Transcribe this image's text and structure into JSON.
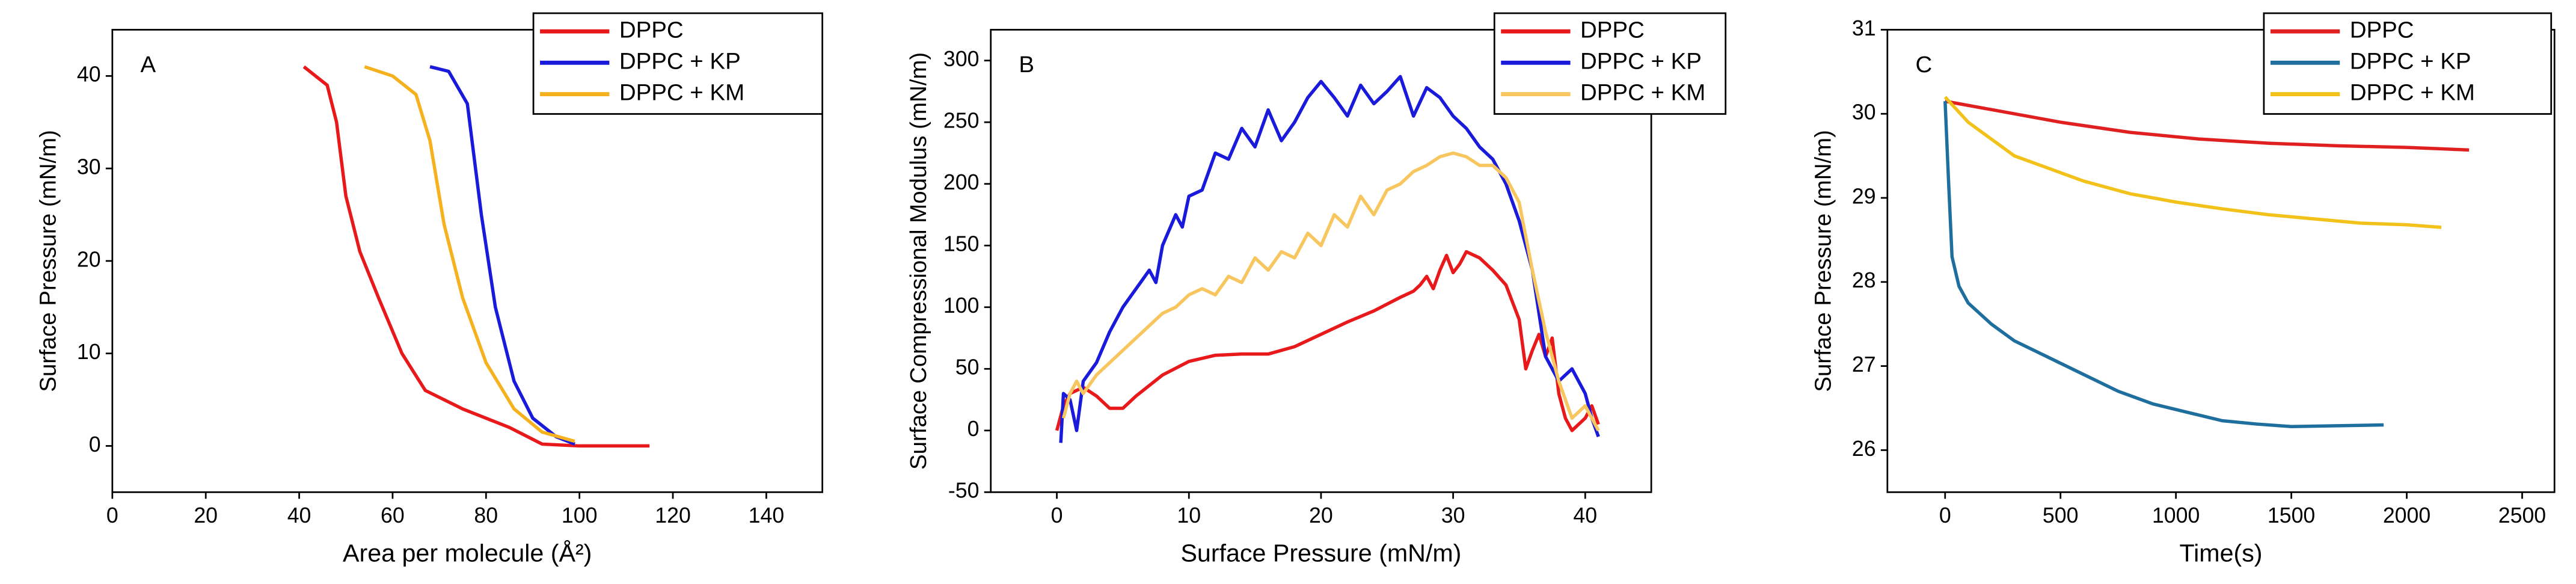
{
  "chart_data": [
    {
      "type": "line",
      "annotation": "A",
      "xlabel": "Area per molecule (Å²)",
      "ylabel": "Surface Pressure (mN/m)",
      "xlim": [
        0,
        152
      ],
      "xticks": [
        0,
        20,
        40,
        60,
        80,
        100,
        120,
        140
      ],
      "ylim": [
        -5,
        45
      ],
      "yticks": [
        0,
        10,
        20,
        30,
        40
      ],
      "legend": "upper right",
      "series": [
        {
          "name": "DPPC",
          "color": "#e8191b",
          "x": [
            41,
            46,
            48,
            50,
            53,
            57,
            62,
            67,
            75,
            85,
            92,
            100,
            115
          ],
          "values": [
            41,
            39,
            35,
            27,
            21,
            16,
            10,
            6,
            4,
            2,
            0.2,
            0,
            0
          ]
        },
        {
          "name": "DPPC + KP",
          "color": "#1a1adb",
          "x": [
            68,
            72,
            76,
            79,
            82,
            86,
            90,
            95,
            99
          ],
          "values": [
            41,
            40.5,
            37,
            25,
            15,
            7,
            3,
            1,
            0.2
          ]
        },
        {
          "name": "DPPC + KM",
          "color": "#f5b21e",
          "x": [
            54,
            60,
            65,
            68,
            71,
            75,
            80,
            86,
            92,
            99
          ],
          "values": [
            41,
            40,
            38,
            33,
            24,
            16,
            9,
            4,
            1.5,
            0.5
          ]
        }
      ]
    },
    {
      "type": "line",
      "annotation": "B",
      "xlabel": "Surface Pressure (mN/m)",
      "ylabel": "Surface Compressional Modulus (mN/m)",
      "xlim": [
        -5,
        45
      ],
      "xticks": [
        0,
        10,
        20,
        30,
        40
      ],
      "ylim": [
        -50,
        325
      ],
      "yticks": [
        -50,
        0,
        50,
        100,
        150,
        200,
        250,
        300
      ],
      "legend": "upper right",
      "series": [
        {
          "name": "DPPC",
          "color": "#e8191b",
          "x": [
            0,
            0.5,
            1,
            2,
            3,
            4,
            5,
            6,
            8,
            10,
            12,
            14,
            16,
            18,
            20,
            22,
            24,
            26,
            27,
            27.5,
            28,
            28.5,
            29,
            29.5,
            30,
            30.5,
            31,
            32,
            33,
            34,
            35,
            35.5,
            36,
            36.5,
            37,
            37.5,
            38,
            38.5,
            39,
            40,
            40.5,
            41
          ],
          "values": [
            0,
            20,
            30,
            35,
            28,
            18,
            18,
            28,
            45,
            56,
            61,
            62,
            62,
            68,
            78,
            88,
            97,
            108,
            113,
            118,
            125,
            115,
            130,
            142,
            128,
            135,
            145,
            140,
            130,
            118,
            90,
            50,
            65,
            78,
            60,
            75,
            30,
            10,
            0,
            10,
            20,
            5
          ]
        },
        {
          "name": "DPPC + KP",
          "color": "#1a1adb",
          "x": [
            0.3,
            0.5,
            1,
            1.5,
            2,
            3,
            4,
            5,
            6,
            7,
            7.5,
            8,
            9,
            9.5,
            10,
            11,
            12,
            13,
            14,
            15,
            16,
            17,
            18,
            19,
            20,
            21,
            22,
            23,
            24,
            25,
            26,
            27,
            28,
            29,
            30,
            31,
            32,
            33,
            34,
            35,
            36,
            37,
            38,
            39,
            40,
            40.5,
            41
          ],
          "values": [
            -10,
            30,
            25,
            0,
            40,
            55,
            80,
            100,
            115,
            130,
            120,
            150,
            175,
            165,
            190,
            195,
            225,
            220,
            245,
            230,
            260,
            235,
            250,
            270,
            283,
            270,
            255,
            280,
            265,
            275,
            287,
            255,
            278,
            270,
            255,
            245,
            230,
            220,
            200,
            170,
            130,
            60,
            40,
            50,
            30,
            10,
            -5
          ]
        },
        {
          "name": "DPPC + KM",
          "color": "#f7c65e",
          "x": [
            0.5,
            1,
            1.5,
            2,
            3,
            4,
            5,
            6,
            7,
            8,
            9,
            10,
            11,
            12,
            13,
            14,
            15,
            16,
            17,
            18,
            19,
            20,
            21,
            22,
            23,
            24,
            25,
            26,
            27,
            28,
            29,
            30,
            31,
            32,
            33,
            34,
            35,
            36,
            37,
            38,
            39,
            40,
            41
          ],
          "values": [
            10,
            30,
            40,
            30,
            45,
            55,
            65,
            75,
            85,
            95,
            100,
            110,
            115,
            110,
            125,
            120,
            140,
            130,
            145,
            140,
            160,
            150,
            175,
            165,
            190,
            175,
            195,
            200,
            210,
            215,
            222,
            225,
            222,
            215,
            215,
            205,
            185,
            130,
            80,
            40,
            10,
            20,
            0
          ]
        }
      ]
    },
    {
      "type": "line",
      "annotation": "C",
      "xlabel": "Time(s)",
      "ylabel": "Surface Pressure (mN/m)",
      "xlim": [
        -250,
        2640
      ],
      "xticks": [
        0,
        500,
        1000,
        1500,
        2000,
        2500
      ],
      "ylim": [
        25.5,
        31
      ],
      "yticks": [
        26,
        27,
        28,
        29,
        30,
        31
      ],
      "legend": "upper right",
      "series": [
        {
          "name": "DPPC",
          "color": "#e02020",
          "x": [
            0,
            200,
            500,
            800,
            1100,
            1400,
            1700,
            2000,
            2270
          ],
          "values": [
            30.15,
            30.05,
            29.9,
            29.78,
            29.7,
            29.65,
            29.62,
            29.6,
            29.57
          ]
        },
        {
          "name": "DPPC + KP",
          "color": "#1f6f9e",
          "x": [
            0,
            15,
            30,
            60,
            100,
            200,
            300,
            450,
            600,
            750,
            900,
            1050,
            1200,
            1350,
            1500,
            1700,
            1900
          ],
          "values": [
            30.15,
            29.2,
            28.3,
            27.95,
            27.75,
            27.5,
            27.3,
            27.1,
            26.9,
            26.7,
            26.55,
            26.45,
            26.35,
            26.31,
            26.28,
            26.29,
            26.3
          ]
        },
        {
          "name": "DPPC + KM",
          "color": "#f2c21a",
          "x": [
            0,
            50,
            100,
            200,
            300,
            450,
            600,
            800,
            1000,
            1200,
            1400,
            1600,
            1800,
            2000,
            2150
          ],
          "values": [
            30.2,
            30.05,
            29.9,
            29.7,
            29.5,
            29.35,
            29.2,
            29.05,
            28.95,
            28.87,
            28.8,
            28.75,
            28.7,
            28.68,
            28.65
          ]
        }
      ]
    }
  ]
}
